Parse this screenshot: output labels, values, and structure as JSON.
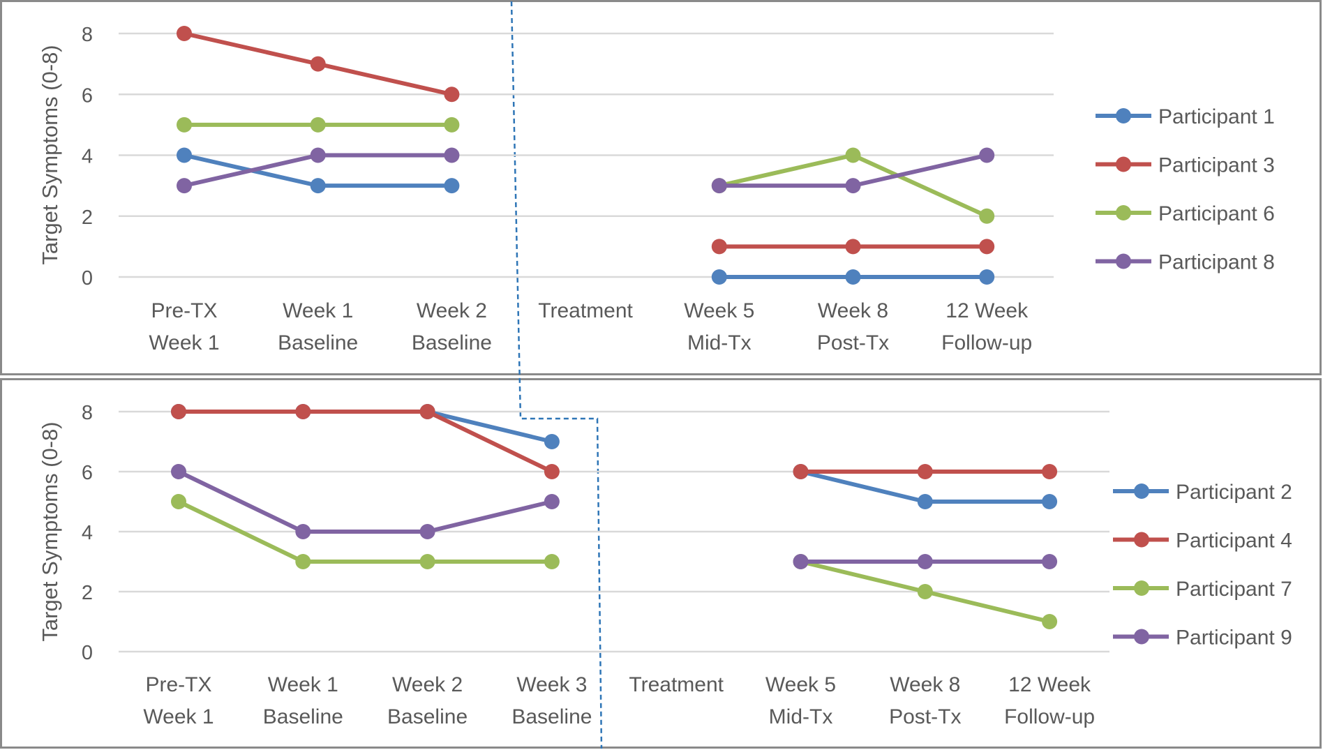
{
  "chart_data": [
    {
      "type": "line",
      "panel": "top",
      "ylabel": "Target Symptoms (0-8)",
      "ylim": [
        0,
        8
      ],
      "yticks": [
        0,
        2,
        4,
        6,
        8
      ],
      "grid": true,
      "legend_position": "right",
      "categories": [
        [
          "Pre-TX",
          "Week 1"
        ],
        [
          "Week 1",
          "Baseline"
        ],
        [
          "Week 2",
          "Baseline"
        ],
        [
          "Treatment"
        ],
        [
          "Week 5",
          "Mid-Tx"
        ],
        [
          "Week 8",
          "Post-Tx"
        ],
        [
          "12 Week",
          "Follow-up"
        ]
      ],
      "series": [
        {
          "name": "Participant 1",
          "color": "#4F81BD",
          "values": [
            4,
            3,
            3,
            null,
            0,
            0,
            0
          ]
        },
        {
          "name": "Participant 3",
          "color": "#C0504D",
          "values": [
            8,
            7,
            6,
            null,
            1,
            1,
            1
          ]
        },
        {
          "name": "Participant 6",
          "color": "#9BBB59",
          "values": [
            5,
            5,
            5,
            null,
            3,
            4,
            2
          ]
        },
        {
          "name": "Participant 8",
          "color": "#8064A2",
          "values": [
            3,
            4,
            4,
            null,
            3,
            3,
            4
          ]
        }
      ]
    },
    {
      "type": "line",
      "panel": "bottom",
      "ylabel": "Target Symptoms (0-8)",
      "ylim": [
        0,
        8
      ],
      "yticks": [
        0,
        2,
        4,
        6,
        8
      ],
      "grid": true,
      "legend_position": "right",
      "categories": [
        [
          "Pre-TX",
          "Week 1"
        ],
        [
          "Week 1",
          "Baseline"
        ],
        [
          "Week 2",
          "Baseline"
        ],
        [
          "Week 3",
          "Baseline"
        ],
        [
          "Treatment"
        ],
        [
          "Week 5",
          "Mid-Tx"
        ],
        [
          "Week 8",
          "Post-Tx"
        ],
        [
          "12 Week",
          "Follow-up"
        ]
      ],
      "series": [
        {
          "name": "Participant 2",
          "color": "#4F81BD",
          "values": [
            8,
            8,
            8,
            7,
            null,
            6,
            5,
            5
          ]
        },
        {
          "name": "Participant 4",
          "color": "#C0504D",
          "values": [
            8,
            8,
            8,
            6,
            null,
            6,
            6,
            6
          ]
        },
        {
          "name": "Participant 7",
          "color": "#9BBB59",
          "values": [
            5,
            3,
            3,
            3,
            null,
            3,
            2,
            1
          ]
        },
        {
          "name": "Participant 9",
          "color": "#8064A2",
          "values": [
            6,
            4,
            4,
            5,
            null,
            3,
            3,
            3
          ]
        }
      ]
    }
  ]
}
